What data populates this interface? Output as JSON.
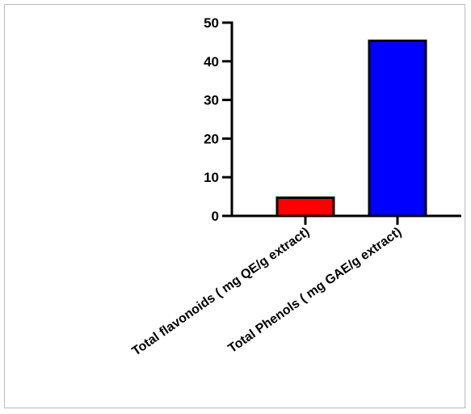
{
  "chart_data": {
    "type": "bar",
    "categories": [
      "Total flavonoids ( mg QE/g extract)",
      "Total Phenols ( mg GAE/g extract)"
    ],
    "values": [
      4.7,
      45.3
    ],
    "ylim": [
      0,
      50
    ],
    "yticks": [
      "0",
      "10",
      "20",
      "30",
      "40",
      "50"
    ],
    "colors": {
      "bars": [
        "#ff0000",
        "#0000ff"
      ],
      "axis": "#000000"
    },
    "xlabel": "",
    "ylabel": "",
    "title": "",
    "grid": false,
    "legend": "none"
  }
}
